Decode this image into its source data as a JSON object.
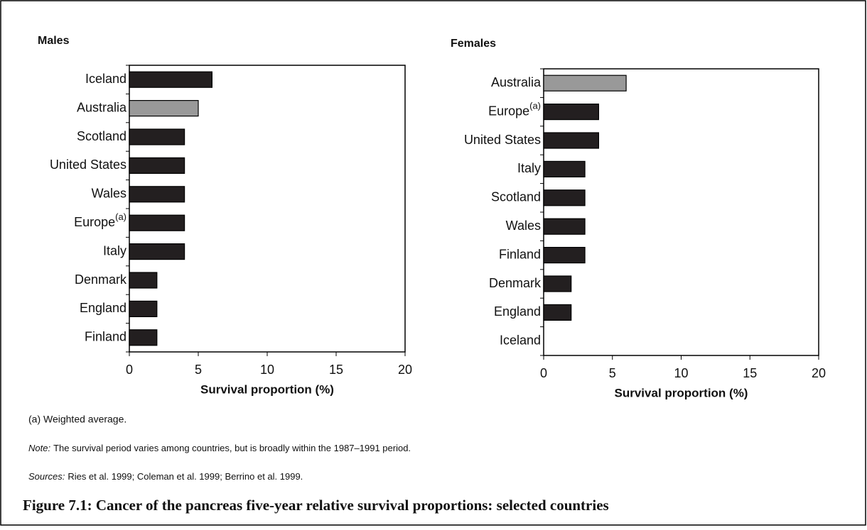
{
  "chart_data": [
    {
      "type": "barh",
      "title": "Males",
      "categories": [
        "Iceland",
        "Australia",
        "Scotland",
        "United States",
        "Wales",
        "Europe(a)",
        "Italy",
        "Denmark",
        "England",
        "Finland"
      ],
      "values": [
        6,
        5,
        4,
        4,
        4,
        4,
        4,
        2,
        2,
        2
      ],
      "colors": [
        "#231f20",
        "#999999",
        "#231f20",
        "#231f20",
        "#231f20",
        "#231f20",
        "#231f20",
        "#231f20",
        "#231f20",
        "#231f20"
      ],
      "xlim": [
        0,
        20
      ],
      "xticks": [
        0,
        5,
        10,
        15,
        20
      ],
      "xlabel": "Survival proportion (%)"
    },
    {
      "type": "barh",
      "title": "Females",
      "categories": [
        "Australia",
        "Europe(a)",
        "United States",
        "Italy",
        "Scotland",
        "Wales",
        "Finland",
        "Denmark",
        "England",
        "Iceland"
      ],
      "values": [
        6,
        4,
        4,
        3,
        3,
        3,
        3,
        2,
        2,
        0
      ],
      "colors": [
        "#999999",
        "#231f20",
        "#231f20",
        "#231f20",
        "#231f20",
        "#231f20",
        "#231f20",
        "#231f20",
        "#231f20",
        "#231f20"
      ],
      "xlim": [
        0,
        20
      ],
      "xticks": [
        0,
        5,
        10,
        15,
        20
      ],
      "xlabel": "Survival proportion (%)"
    }
  ],
  "footnote": "(a) Weighted average.",
  "note": {
    "label": "Note:",
    "text": "The survival period varies among countries, but is broadly within the 1987–1991 period."
  },
  "sources": {
    "label": "Sources:",
    "text": "Ries et al. 1999; Coleman et al. 1999; Berrino et al. 1999."
  },
  "caption": "Figure 7.1: Cancer of the pancreas five-year relative survival proportions: selected countries"
}
